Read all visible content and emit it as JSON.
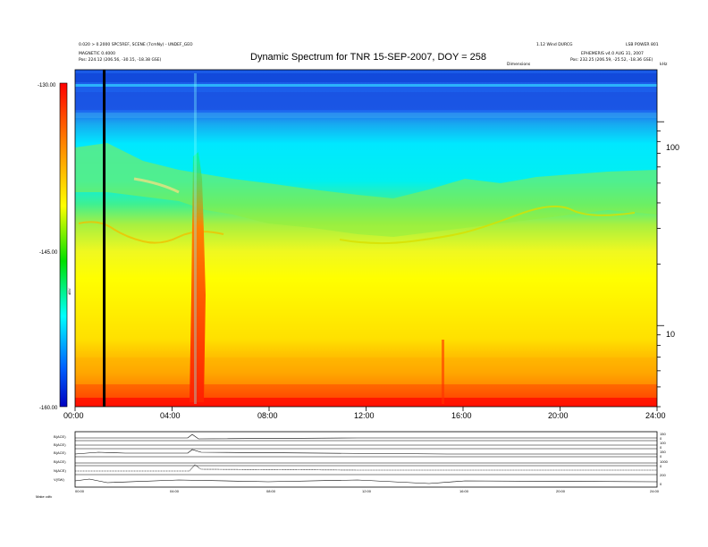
{
  "header": {
    "left_line1": "0.020 > 0.2000 SPC5REF, SCENE (7cmNy) - UNDEF_GEO",
    "left_line2": "MAGNETIC 0.4000",
    "left_line3": "Pos: 224.12 (206.56, -30.15, -18.38 GSE)",
    "right_line1": "1.12 Wind DURCG",
    "right_line2": "LSB POWER 801",
    "right_line3": "EPHEMERIS v4.0 AUG 31, 2007",
    "right_line4": "Pos: 232.25 (206.59, -25.52, -18.36 GSE)",
    "center_small": "Dimensions",
    "corner": "kHz"
  },
  "chart_data": {
    "type": "heatmap",
    "title": "Dynamic Spectrum for TNR 15-SEP-2007, DOY = 258",
    "x_ticks": [
      "00:00",
      "04:00",
      "08:00",
      "12:00",
      "16:00",
      "20:00",
      "24:00"
    ],
    "x_range_hours": [
      0,
      24
    ],
    "y_scale": "log",
    "y_range_khz": [
      4,
      180
    ],
    "y_ticks": [
      "100",
      "10"
    ],
    "colorbar": {
      "ticks": [
        "-130.00",
        "-145.00",
        "-160.00"
      ],
      "range": [
        -160,
        -130
      ],
      "label": "dBV",
      "colors": [
        "#ff0000",
        "#ff8000",
        "#ffff00",
        "#00e000",
        "#00ffff",
        "#0060ff",
        "#0000c0"
      ]
    },
    "marker_hour": 1.2,
    "bands": [
      {
        "level": "upper",
        "color": "blue"
      },
      {
        "level": "middle",
        "color": "cyan/green"
      },
      {
        "level": "lower",
        "color": "yellow/orange"
      },
      {
        "level": "bottom",
        "color": "red"
      }
    ]
  },
  "subpanels": {
    "labels": [
      "B(ACE)",
      "B(ACE)",
      "B(ACE)",
      "B(ACE)",
      "N(ACE)",
      "V(SW)"
    ],
    "right_scale": [
      "150",
      "0",
      "100",
      "0",
      "150",
      "0",
      "1000",
      "0",
      "200",
      "0"
    ],
    "x_ticks": [
      "00:00",
      "04:00",
      "08:00",
      "12:00",
      "16:00",
      "20:00",
      "24:00"
    ],
    "footer": "Make  cdfc"
  }
}
